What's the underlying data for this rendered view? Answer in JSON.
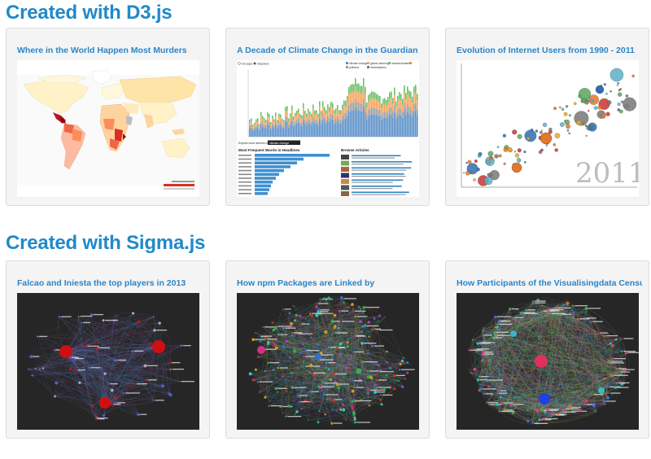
{
  "sections": [
    {
      "title": "Created with D3.js",
      "cards": [
        {
          "title": "Where in the World Happen Most Murders",
          "preview": "world-choropleth-map"
        },
        {
          "title": "A Decade of Climate Change in the Guardian",
          "preview": "stacked-bar-timeline-dashboard",
          "inner": {
            "legend_left": [
              "Groups",
              "Stacked"
            ],
            "legend_right": [
              "climate change",
              "global warming",
              "natural disaster",
              "polluted",
              "deforestation"
            ],
            "filter_text": "Explicit word articles for",
            "filter_tag": "climate change",
            "words_heading": "Most Frequent Words in Headlines",
            "articles_heading": "Browse Articles"
          }
        },
        {
          "title": "Evolution of Internet Users from 1990 - 2011",
          "preview": "bubble-scatter-plot",
          "inner": {
            "year": "2011"
          }
        }
      ]
    },
    {
      "title": "Created with Sigma.js",
      "cards": [
        {
          "title": "Falcao and Iniesta the top players in 2013",
          "preview": "network-graph-football"
        },
        {
          "title": "How npm Packages are Linked by",
          "preview": "network-graph-npm"
        },
        {
          "title": "How Participants of the Visualisingdata Census",
          "preview": "network-graph-census"
        }
      ]
    }
  ],
  "colors": {
    "heading": "#2189c9",
    "card_title": "#2a85c8",
    "card_bg": "#f4f4f4",
    "card_border": "#dcdcdc",
    "dark_bg": "#262626"
  }
}
